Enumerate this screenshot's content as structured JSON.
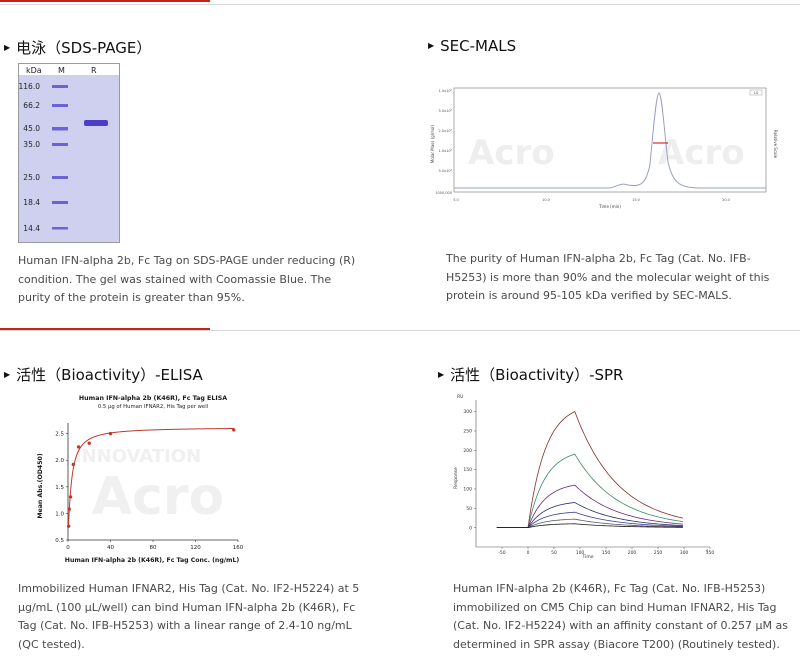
{
  "colors": {
    "accent_red": "#c8201c",
    "gel_bg": "#cfd0ef",
    "band": "#4b3fc8",
    "text": "#4a4a4a"
  },
  "sds_page": {
    "title": "电泳（SDS-PAGE）",
    "gel": {
      "col_kda": "kDa",
      "col_m": "M",
      "col_r": "R",
      "markers": [
        "116.0",
        "66.2",
        "45.0",
        "35.0",
        "25.0",
        "18.4",
        "14.4"
      ]
    },
    "description": "Human IFN-alpha 2b, Fc Tag on SDS-PAGE under reducing (R) condition. The gel was stained with Coomassie Blue. The purity of the protein is greater than 95%."
  },
  "sec_mals": {
    "title": "SEC-MALS",
    "plot": {
      "ylabel_left": "Molar Mass (g/mol)",
      "ylabel_right": "Relative Scale",
      "xlabel": "Time (min)",
      "x_ticks": [
        "5.0",
        "10.0",
        "15.0",
        "20.0"
      ],
      "y_ticks": [
        "1.0x10⁶",
        "5.0x10⁵",
        "2.0x10⁵",
        "1.0x10⁵",
        "5.0x10⁴",
        "1000.000"
      ],
      "legend": "LS",
      "watermark": "Acro"
    },
    "description": "The purity of Human IFN-alpha 2b, Fc Tag (Cat. No. IFB-H5253) is more than 90% and the molecular weight of this protein is around 95-105 kDa verified by SEC-MALS."
  },
  "elisa": {
    "title": "活性（Bioactivity）-ELISA",
    "description": "Immobilized Human IFNAR2, His Tag (Cat. No. IF2-H5224) at 5 μg/mL (100 μL/well) can bind Human IFN-alpha 2b (K46R), Fc Tag (Cat. No. IFB-H5253) with a linear range of 2.4-10 ng/mL (QC tested)."
  },
  "spr": {
    "title": "活性（Bioactivity）-SPR",
    "description": "Human IFN-alpha 2b (K46R), Fc Tag (Cat. No. IFB-H5253) immobilized on CM5 Chip can bind Human IFNAR2, His Tag (Cat. No. IF2-H5224) with an affinity constant of 0.257 μM as determined in SPR assay (Biacore T200) (Routinely tested)."
  },
  "chart_data": [
    {
      "type": "scatter",
      "title": "Human IFN-alpha 2b (K46R), Fc Tag ELISA",
      "subtitle": "0.5 μg of Human IFNAR2, His Tag per well",
      "xlabel": "Human IFN-alpha 2b (K46R), Fc Tag Conc. (ng/mL)",
      "ylabel": "Mean Abs.(OD450)",
      "xlim": [
        0,
        160
      ],
      "ylim": [
        0.5,
        2.7
      ],
      "x_ticks": [
        0,
        40,
        80,
        120,
        160
      ],
      "y_ticks": [
        0.5,
        1.0,
        1.5,
        2.0,
        2.5
      ],
      "x": [
        0.6,
        1.2,
        2.4,
        5,
        10,
        20,
        40,
        156
      ],
      "y": [
        0.76,
        1.08,
        1.31,
        1.92,
        2.25,
        2.32,
        2.5,
        2.57
      ],
      "fit": "4PL curve",
      "series_color": "#c0392b"
    },
    {
      "type": "line",
      "xlabel": "Time",
      "ylabel": "Response",
      "y_unit": "RU",
      "x_unit": "s",
      "xlim": [
        -100,
        350
      ],
      "ylim": [
        -50,
        330
      ],
      "x_ticks": [
        -50,
        0,
        50,
        100,
        150,
        200,
        250,
        300,
        350
      ],
      "y_ticks": [
        0,
        50,
        100,
        150,
        200,
        250,
        300
      ],
      "association_start": 0,
      "dissociation_start": 90,
      "curve_peaks_ru": [
        300,
        190,
        110,
        65,
        40,
        22,
        10
      ]
    }
  ]
}
